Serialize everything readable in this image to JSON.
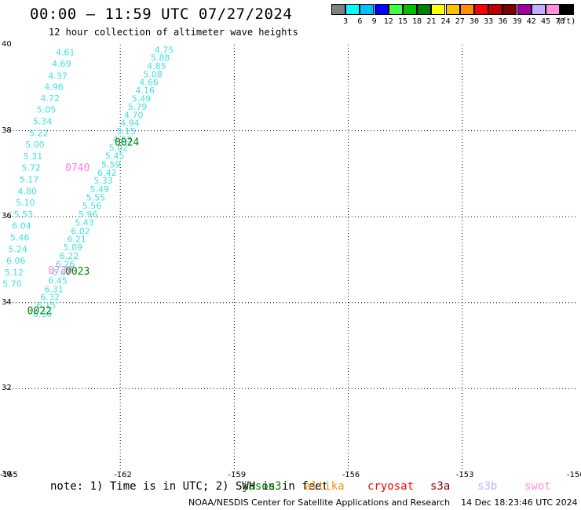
{
  "header": {
    "title": "00:00 — 11:59 UTC 07/27/2024",
    "subtitle": "12 hour collection of altimeter wave heights"
  },
  "colorbar": {
    "labels": [
      "3",
      "6",
      "9",
      "12",
      "15",
      "18",
      "21",
      "24",
      "27",
      "30",
      "33",
      "36",
      "39",
      "42",
      "45",
      "70"
    ],
    "unit": "(ft)",
    "colors": [
      "#808080",
      "#00ffff",
      "#00c0ff",
      "#0000ff",
      "#40ff40",
      "#00c000",
      "#008000",
      "#ffff00",
      "#ffc000",
      "#ff9000",
      "#ff0000",
      "#c00000",
      "#800000",
      "#a000a0",
      "#c0b0ff",
      "#ff90e0",
      "#000000"
    ]
  },
  "axes": {
    "lat_ticks": [
      "40",
      "38",
      "36",
      "34",
      "32",
      "30"
    ],
    "lon_ticks": [
      "-165",
      "-162",
      "-159",
      "-156",
      "-153",
      "-150"
    ]
  },
  "map": {
    "lon_range": [
      -165,
      -150
    ],
    "lat_range": [
      30,
      40
    ],
    "tracks": [
      {
        "color": "#40e0e0",
        "points": [
          {
            "lon": -163.7,
            "lat": 39.83,
            "v": "4.61"
          },
          {
            "lon": -163.8,
            "lat": 39.56,
            "v": "4.69"
          },
          {
            "lon": -163.9,
            "lat": 39.28,
            "v": "4.37"
          },
          {
            "lon": -164.0,
            "lat": 39.02,
            "v": "4.96"
          },
          {
            "lon": -164.1,
            "lat": 38.76,
            "v": "4.72"
          },
          {
            "lon": -164.2,
            "lat": 38.49,
            "v": "5.05"
          },
          {
            "lon": -164.3,
            "lat": 38.22,
            "v": "5.34"
          },
          {
            "lon": -164.4,
            "lat": 37.95,
            "v": "5.22"
          },
          {
            "lon": -164.5,
            "lat": 37.68,
            "v": "5.00"
          },
          {
            "lon": -164.55,
            "lat": 37.41,
            "v": "5.31"
          },
          {
            "lon": -164.6,
            "lat": 37.14,
            "v": "5.72"
          },
          {
            "lon": -164.65,
            "lat": 36.87,
            "v": "5.17"
          },
          {
            "lon": -164.7,
            "lat": 36.6,
            "v": "4.80"
          },
          {
            "lon": -164.75,
            "lat": 36.33,
            "v": "5.10"
          },
          {
            "lon": -164.8,
            "lat": 36.06,
            "v": "5.53"
          },
          {
            "lon": -164.85,
            "lat": 35.79,
            "v": "6.04"
          },
          {
            "lon": -164.9,
            "lat": 35.52,
            "v": "5.46"
          },
          {
            "lon": -164.95,
            "lat": 35.25,
            "v": "5.24"
          },
          {
            "lon": -165.0,
            "lat": 34.98,
            "v": "6.06"
          },
          {
            "lon": -165.05,
            "lat": 34.71,
            "v": "5.12"
          },
          {
            "lon": -165.1,
            "lat": 34.44,
            "v": "5.70"
          }
        ]
      },
      {
        "color": "#40e0e0",
        "points": [
          {
            "lon": -161.1,
            "lat": 39.88,
            "v": "4.75"
          },
          {
            "lon": -161.2,
            "lat": 39.7,
            "v": "5.88"
          },
          {
            "lon": -161.3,
            "lat": 39.51,
            "v": "4.85"
          },
          {
            "lon": -161.4,
            "lat": 39.32,
            "v": "5.08"
          },
          {
            "lon": -161.5,
            "lat": 39.13,
            "v": "4.66"
          },
          {
            "lon": -161.6,
            "lat": 38.94,
            "v": "4.16"
          },
          {
            "lon": -161.7,
            "lat": 38.75,
            "v": "5.49"
          },
          {
            "lon": -161.8,
            "lat": 38.56,
            "v": "5.79"
          },
          {
            "lon": -161.9,
            "lat": 38.37,
            "v": "4.70"
          },
          {
            "lon": -162.0,
            "lat": 38.18,
            "v": "4.94"
          },
          {
            "lon": -162.1,
            "lat": 37.99,
            "v": "5.15"
          },
          {
            "lon": -162.2,
            "lat": 37.8,
            "v": "4.63"
          },
          {
            "lon": -162.3,
            "lat": 37.61,
            "v": "5.02"
          },
          {
            "lon": -162.4,
            "lat": 37.42,
            "v": "5.45"
          },
          {
            "lon": -162.5,
            "lat": 37.22,
            "v": "5.59"
          },
          {
            "lon": -162.6,
            "lat": 37.03,
            "v": "6.42"
          },
          {
            "lon": -162.7,
            "lat": 36.84,
            "v": "5.33"
          },
          {
            "lon": -162.8,
            "lat": 36.64,
            "v": "5.49"
          },
          {
            "lon": -162.9,
            "lat": 36.45,
            "v": "5.55"
          },
          {
            "lon": -163.0,
            "lat": 36.26,
            "v": "5.56"
          },
          {
            "lon": -163.1,
            "lat": 36.06,
            "v": "5.96"
          },
          {
            "lon": -163.2,
            "lat": 35.87,
            "v": "5.43"
          },
          {
            "lon": -163.3,
            "lat": 35.67,
            "v": "6.02"
          },
          {
            "lon": -163.4,
            "lat": 35.48,
            "v": "6.21"
          },
          {
            "lon": -163.5,
            "lat": 35.29,
            "v": "5.09"
          },
          {
            "lon": -163.6,
            "lat": 35.09,
            "v": "6.22"
          },
          {
            "lon": -163.7,
            "lat": 34.9,
            "v": "6.26"
          },
          {
            "lon": -163.8,
            "lat": 34.71,
            "v": "6.67"
          },
          {
            "lon": -163.9,
            "lat": 34.52,
            "v": "6.45"
          },
          {
            "lon": -164.0,
            "lat": 34.32,
            "v": "6.31"
          },
          {
            "lon": -164.1,
            "lat": 34.13,
            "v": "6.32"
          },
          {
            "lon": -164.2,
            "lat": 33.94,
            "v": "6.15"
          },
          {
            "lon": -164.3,
            "lat": 33.74,
            "v": "6.30"
          }
        ]
      }
    ],
    "time_labels": [
      {
        "lon": -162.15,
        "lat": 37.75,
        "t": "0024",
        "color": "#008000"
      },
      {
        "lon": -163.45,
        "lat": 37.15,
        "t": "0740",
        "color": "#ff80e0"
      },
      {
        "lon": -163.45,
        "lat": 34.74,
        "t": "0023",
        "color": "#008000"
      },
      {
        "lon": -163.9,
        "lat": 34.76,
        "t": "0739",
        "color": "#ff80e0"
      },
      {
        "lon": -164.45,
        "lat": 33.82,
        "t": "0022",
        "color": "#008000"
      }
    ]
  },
  "footer": {
    "note": "note: 1) Time is in UTC; 2) SWH is in feet",
    "satellites": [
      {
        "name": "jason3",
        "color": "#008000"
      },
      {
        "name": "altika",
        "color": "#ff9000"
      },
      {
        "name": "cryosat",
        "color": "#ff0000"
      },
      {
        "name": "s3a",
        "color": "#800000"
      },
      {
        "name": "s3b",
        "color": "#c0b0ff"
      },
      {
        "name": "swot",
        "color": "#ff90e0"
      }
    ],
    "credit": "NOAA/NESDIS Center for Satellite Applications and Research    14 Dec 18:23:46 UTC 2024"
  }
}
